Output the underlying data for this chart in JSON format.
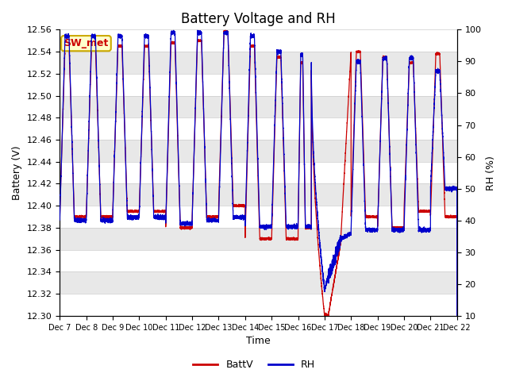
{
  "title": "Battery Voltage and RH",
  "xlabel": "Time",
  "ylabel_left": "Battery (V)",
  "ylabel_right": "RH (%)",
  "ylim_left": [
    12.3,
    12.56
  ],
  "ylim_right": [
    10,
    100
  ],
  "yticks_left": [
    12.3,
    12.32,
    12.34,
    12.36,
    12.38,
    12.4,
    12.42,
    12.44,
    12.46,
    12.48,
    12.5,
    12.52,
    12.54,
    12.56
  ],
  "yticks_right": [
    10,
    20,
    30,
    40,
    50,
    60,
    70,
    80,
    90,
    100
  ],
  "x_tick_labels": [
    "Dec 7",
    "Dec 8",
    "Dec 9",
    "Dec 10",
    "Dec 11",
    "Dec 12",
    "Dec 13",
    "Dec 14",
    "Dec 15",
    "Dec 16",
    "Dec 17",
    "Dec 18",
    "Dec 19",
    "Dec 20",
    "Dec 21",
    "Dec 22"
  ],
  "color_batt": "#cc0000",
  "color_rh": "#0000cc",
  "annotation_label": "SW_met",
  "annotation_bg": "#ffffcc",
  "annotation_border": "#ccaa00",
  "grid_color": "#cccccc",
  "legend_batt": "BattV",
  "legend_rh": "RH",
  "title_fontsize": 12,
  "axis_fontsize": 9,
  "tick_fontsize": 8,
  "band_colors": [
    "#ffffff",
    "#e8e8e8"
  ]
}
